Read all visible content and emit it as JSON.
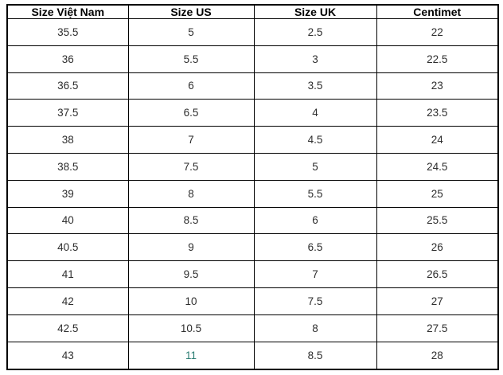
{
  "colors": {
    "background": "#ffffff",
    "border": "#000000",
    "header_text": "#000000",
    "body_text": "#2e2e2e",
    "highlight_text": "#2a7d72"
  },
  "chart_data": {
    "type": "table",
    "columns": [
      "Size Việt Nam",
      "Size US",
      "Size UK",
      "Centimet"
    ],
    "rows": [
      [
        "35.5",
        "5",
        "2.5",
        "22"
      ],
      [
        "36",
        "5.5",
        "3",
        "22.5"
      ],
      [
        "36.5",
        "6",
        "3.5",
        "23"
      ],
      [
        "37.5",
        "6.5",
        "4",
        "23.5"
      ],
      [
        "38",
        "7",
        "4.5",
        "24"
      ],
      [
        "38.5",
        "7.5",
        "5",
        "24.5"
      ],
      [
        "39",
        "8",
        "5.5",
        "25"
      ],
      [
        "40",
        "8.5",
        "6",
        "25.5"
      ],
      [
        "40.5",
        "9",
        "6.5",
        "26"
      ],
      [
        "41",
        "9.5",
        "7",
        "26.5"
      ],
      [
        "42",
        "10",
        "7.5",
        "27"
      ],
      [
        "42.5",
        "10.5",
        "8",
        "27.5"
      ],
      [
        "43",
        "11",
        "8.5",
        "28"
      ]
    ],
    "highlight": {
      "row_index": 12,
      "col_index": 1,
      "color": "#2a7d72"
    },
    "title": "",
    "grid": "on",
    "legend_position": "none"
  }
}
